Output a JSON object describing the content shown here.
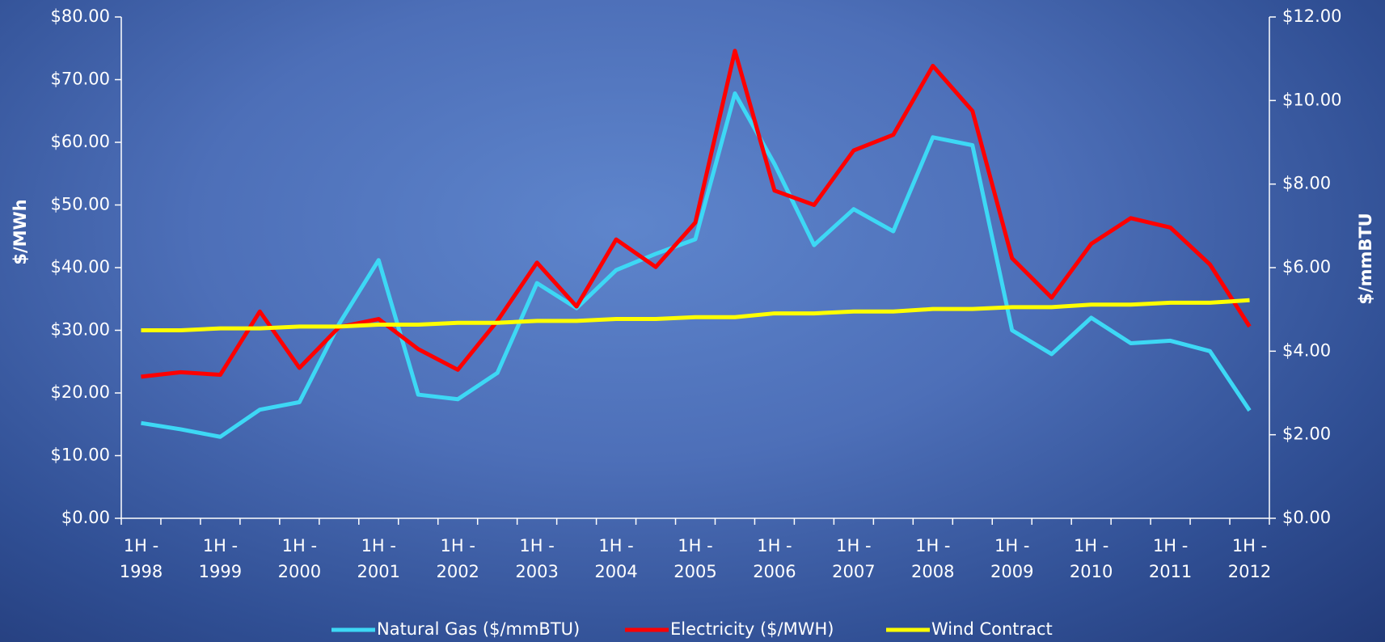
{
  "chart_data": {
    "type": "line",
    "y_label": "$/MWh",
    "y2_label": "$/mmBTU",
    "categories": [
      "1H - 1998",
      null,
      "1H - 1999",
      null,
      "1H - 2000",
      null,
      "1H - 2001",
      null,
      "1H - 2002",
      null,
      "1H - 2003",
      null,
      "1H - 2004",
      null,
      "1H - 2005",
      null,
      "1H - 2006",
      null,
      "1H - 2007",
      null,
      "1H - 2008",
      null,
      "1H - 2009",
      null,
      "1H - 2010",
      null,
      "1H - 2011",
      null,
      "1H - 2012"
    ],
    "series": [
      {
        "name": "Natural Gas ($/mmBTU)",
        "color": "#3dd8f5",
        "axis": "y2",
        "values": [
          2.28,
          2.13,
          1.95,
          2.6,
          2.78,
          4.65,
          6.18,
          2.96,
          2.85,
          3.48,
          5.63,
          5.03,
          5.94,
          6.33,
          6.68,
          10.17,
          8.48,
          6.54,
          7.4,
          6.87,
          9.12,
          8.93,
          4.5,
          3.93,
          4.8,
          4.19,
          4.25,
          4.0,
          2.58
        ]
      },
      {
        "name": "Electricity ($/MWH)",
        "color": "#ff0000",
        "values": [
          22.6,
          23.3,
          22.9,
          33.0,
          24.0,
          30.5,
          31.8,
          27.0,
          23.7,
          31.5,
          40.8,
          33.8,
          44.5,
          40.1,
          47.2,
          74.6,
          52.3,
          50.0,
          58.7,
          61.2,
          72.2,
          65.0,
          41.5,
          35.2,
          43.8,
          47.9,
          46.4,
          40.5,
          30.6
        ]
      },
      {
        "name": "Wind Contract",
        "color": "#ffff00",
        "values": [
          30.0,
          30.0,
          30.3,
          30.3,
          30.6,
          30.6,
          30.9,
          30.9,
          31.2,
          31.2,
          31.5,
          31.5,
          31.8,
          31.8,
          32.1,
          32.1,
          32.7,
          32.7,
          33.0,
          33.0,
          33.4,
          33.4,
          33.7,
          33.7,
          34.1,
          34.1,
          34.4,
          34.4,
          34.8
        ]
      }
    ],
    "ylim": [
      0,
      80
    ],
    "yticks": [
      {
        "value": 0,
        "label": "$0.00"
      },
      {
        "value": 10,
        "label": "$10.00"
      },
      {
        "value": 20,
        "label": "$20.00"
      },
      {
        "value": 30,
        "label": "$30.00"
      },
      {
        "value": 40,
        "label": "$40.00"
      },
      {
        "value": 50,
        "label": "$50.00"
      },
      {
        "value": 60,
        "label": "$60.00"
      },
      {
        "value": 70,
        "label": "$70.00"
      },
      {
        "value": 80,
        "label": "$80.00"
      }
    ],
    "y2lim": [
      0,
      12
    ],
    "y2ticks": [
      {
        "value": 0,
        "label": "$0.00"
      },
      {
        "value": 2,
        "label": "$2.00"
      },
      {
        "value": 4,
        "label": "$4.00"
      },
      {
        "value": 6,
        "label": "$6.00"
      },
      {
        "value": 8,
        "label": "$8.00"
      },
      {
        "value": 10,
        "label": "$10.00"
      },
      {
        "value": 12,
        "label": "$12.00"
      }
    ],
    "legend": "bottom"
  }
}
